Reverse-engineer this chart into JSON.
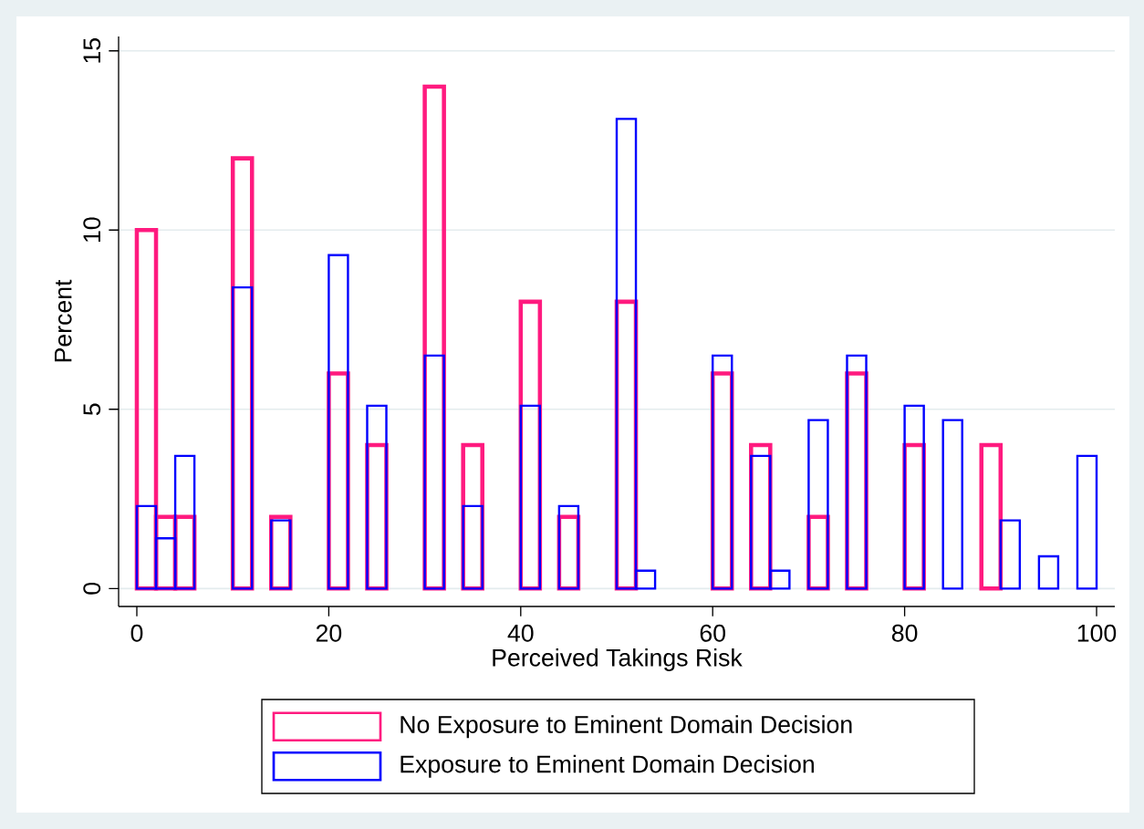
{
  "chart_data": {
    "type": "histogram",
    "xlabel": "Perceived Takings Risk",
    "ylabel": "Percent",
    "bins": [
      0,
      2,
      4,
      6,
      8,
      10,
      12,
      14,
      16,
      18,
      20,
      22,
      24,
      26,
      28,
      30,
      32,
      34,
      36,
      38,
      40,
      42,
      44,
      46,
      48,
      50,
      52,
      54,
      56,
      58,
      60,
      62,
      64,
      66,
      68,
      70,
      72,
      74,
      76,
      78,
      80,
      82,
      84,
      86,
      88,
      90,
      92,
      94,
      96,
      98,
      100
    ],
    "series": [
      {
        "name": "No Exposure to Eminent Domain Decision",
        "color": "#ff1a7f",
        "values": [
          10,
          2,
          2,
          null,
          null,
          12,
          null,
          2,
          null,
          null,
          6,
          null,
          4,
          null,
          null,
          14,
          null,
          4,
          null,
          null,
          8,
          null,
          2,
          null,
          null,
          8,
          null,
          null,
          null,
          null,
          6,
          null,
          4,
          null,
          null,
          2,
          null,
          6,
          null,
          null,
          4,
          null,
          null,
          null,
          4,
          null,
          null,
          null,
          null,
          null
        ]
      },
      {
        "name": "Exposure to Eminent Domain Decision",
        "color": "#0000ff",
        "values": [
          2.3,
          1.4,
          3.7,
          null,
          null,
          8.4,
          null,
          1.9,
          null,
          null,
          9.3,
          null,
          5.1,
          null,
          null,
          6.5,
          null,
          2.3,
          null,
          null,
          5.1,
          null,
          2.3,
          null,
          null,
          13.1,
          0.5,
          null,
          null,
          null,
          6.5,
          null,
          3.7,
          0.5,
          null,
          4.7,
          null,
          6.5,
          null,
          null,
          5.1,
          null,
          4.7,
          null,
          null,
          1.9,
          null,
          0.9,
          null,
          3.7
        ]
      }
    ],
    "xlim": [
      -1.9,
      101.9
    ],
    "ylim": [
      -0.5,
      15.4
    ],
    "xticks": [
      0,
      20,
      40,
      60,
      80,
      100
    ],
    "yticks": [
      0,
      5,
      10,
      15
    ],
    "grid": "y",
    "legend": "bottom"
  }
}
